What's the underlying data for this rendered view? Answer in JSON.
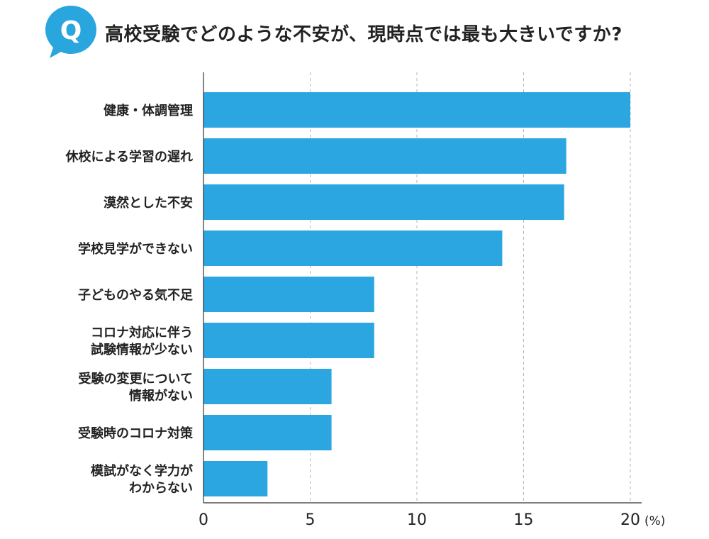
{
  "header": {
    "q_letter": "Q",
    "title": "高校受験でどのような不安が、現時点では最も大きいですか?"
  },
  "colors": {
    "bar": "#2ba6e0",
    "accent": "#2aa6de"
  },
  "chart_data": {
    "type": "bar",
    "orientation": "horizontal",
    "categories": [
      [
        "健康・体調管理"
      ],
      [
        "休校による学習の遅れ"
      ],
      [
        "漠然とした不安"
      ],
      [
        "学校見学ができない"
      ],
      [
        "子どものやる気不足"
      ],
      [
        "コロナ対応に伴う",
        "試験情報が少ない"
      ],
      [
        "受験の変更について",
        "情報がない"
      ],
      [
        "受験時のコロナ対策"
      ],
      [
        "模試がなく学力が",
        "わからない"
      ]
    ],
    "values": [
      20.0,
      17.0,
      16.9,
      14.0,
      8.0,
      8.0,
      6.0,
      6.0,
      3.0
    ],
    "xlim": [
      0,
      20
    ],
    "xticks": [
      "0",
      "5",
      "10",
      "15",
      "20"
    ],
    "unit": "(%)",
    "grid": "vertical dashed"
  }
}
